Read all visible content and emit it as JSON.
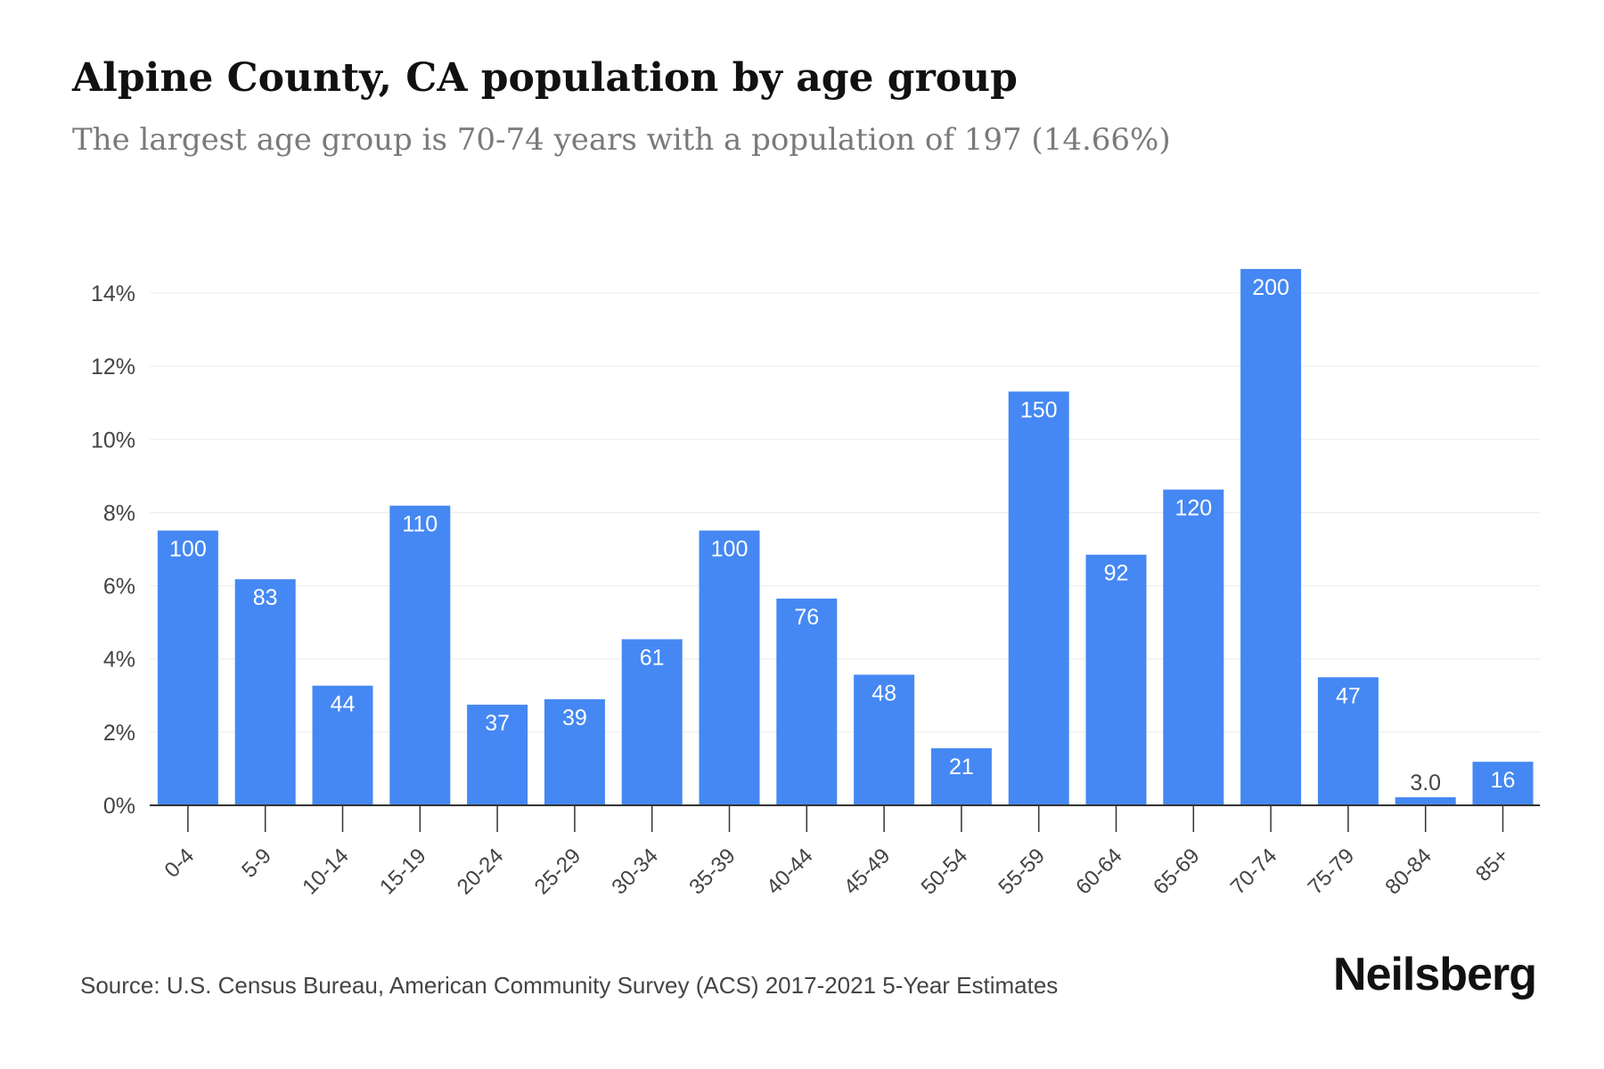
{
  "header": {
    "title": "Alpine County, CA population by age group",
    "subtitle": "The largest age group is 70-74 years with a population of 197 (14.66%)"
  },
  "footer": {
    "source": "Source: U.S. Census Bureau, American Community Survey (ACS) 2017-2021 5-Year Estimates",
    "brand": "Neilsberg"
  },
  "colors": {
    "bar": "#4588F3",
    "bar_label": "#ffffff",
    "grid": "#ececec",
    "axis": "#333333",
    "tick_text": "#444444"
  },
  "chart_data": {
    "type": "bar",
    "title": "Alpine County, CA population by age group",
    "subtitle": "The largest age group is 70-74 years with a population of 197 (14.66%)",
    "xlabel": "",
    "ylabel": "",
    "ylim": [
      0,
      14.66
    ],
    "y_ticks": [
      0,
      2,
      4,
      6,
      8,
      10,
      12,
      14
    ],
    "y_tick_labels": [
      "0%",
      "2%",
      "4%",
      "6%",
      "8%",
      "10%",
      "12%",
      "14%"
    ],
    "grid": true,
    "legend": "none",
    "categories": [
      "0-4",
      "5-9",
      "10-14",
      "15-19",
      "20-24",
      "25-29",
      "30-34",
      "35-39",
      "40-44",
      "45-49",
      "50-54",
      "55-59",
      "60-64",
      "65-69",
      "70-74",
      "75-79",
      "80-84",
      "85+"
    ],
    "values": [
      7.51,
      6.18,
      3.27,
      8.19,
      2.75,
      2.9,
      4.54,
      7.51,
      5.65,
      3.57,
      1.56,
      11.31,
      6.85,
      8.63,
      14.66,
      3.5,
      0.22,
      1.19
    ],
    "data_labels": [
      "100",
      "83",
      "44",
      "110",
      "37",
      "39",
      "61",
      "100",
      "76",
      "48",
      "21",
      "150",
      "92",
      "120",
      "200",
      "47",
      "3.0",
      "16"
    ]
  }
}
